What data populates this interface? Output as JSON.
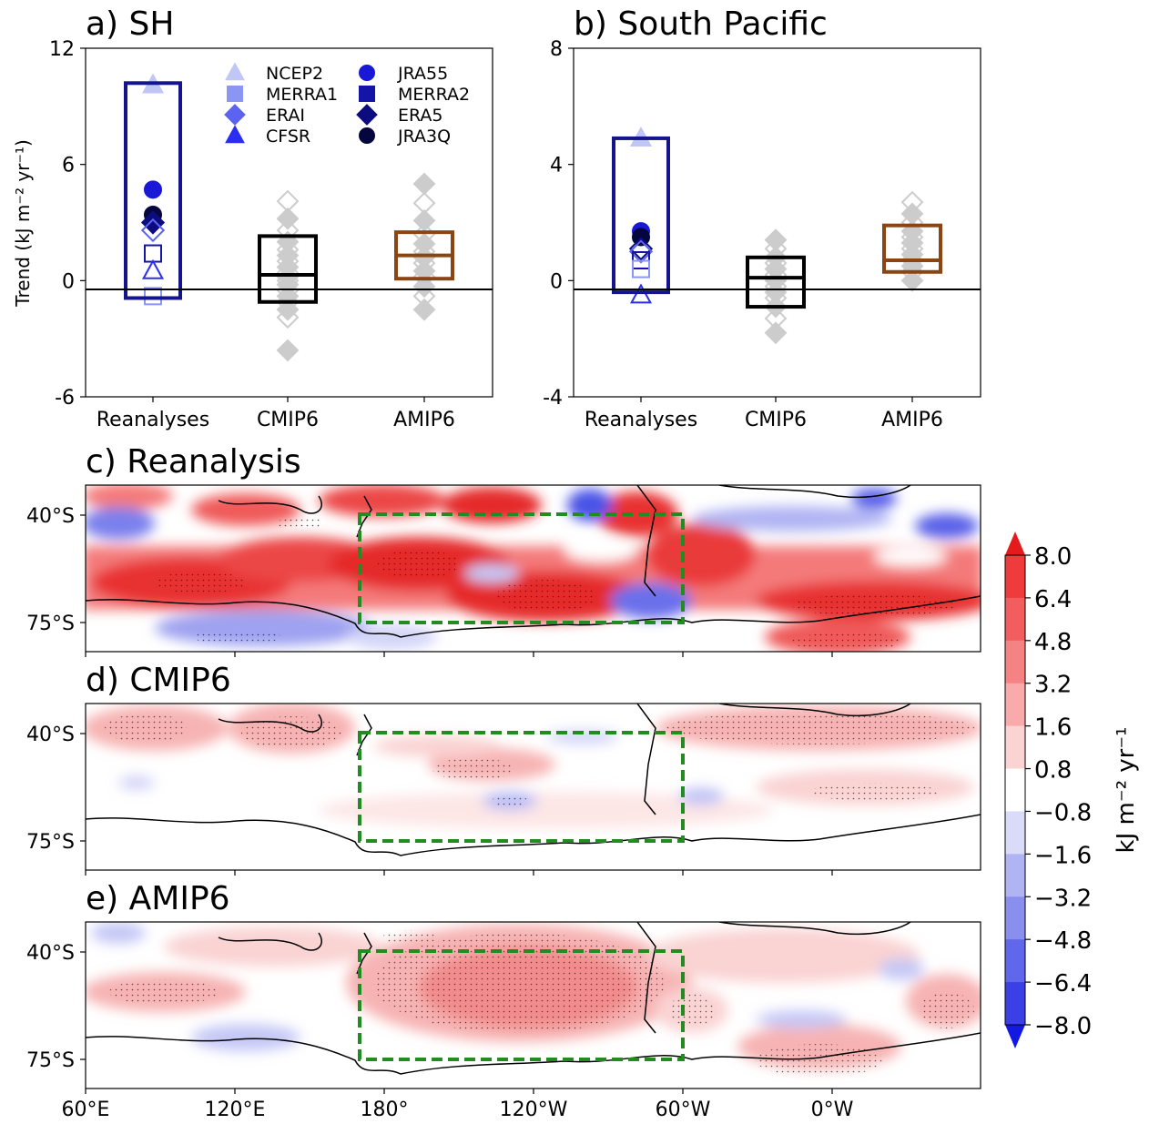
{
  "chart_data": [
    {
      "panel": "a",
      "type": "scatter",
      "title": "a) SH",
      "ylabel": "Trend (kJ m⁻² yr⁻¹)",
      "ylim": [
        -6,
        12
      ],
      "yticks": [
        "-6",
        "0",
        "6",
        "12"
      ],
      "categories": [
        "Reanalyses",
        "CMIP6",
        "AMIP6"
      ],
      "legend": {
        "placement": "top-center",
        "items": [
          {
            "name": "NCEP2",
            "marker": "triangle",
            "color": "#c0c6f6"
          },
          {
            "name": "MERRA1",
            "marker": "square",
            "color": "#8a95f4"
          },
          {
            "name": "ERAI",
            "marker": "diamond",
            "color": "#5b63f0"
          },
          {
            "name": "CFSR",
            "marker": "triangle",
            "color": "#2a2ef0"
          },
          {
            "name": "JRA55",
            "marker": "circle",
            "color": "#1818d6"
          },
          {
            "name": "MERRA2",
            "marker": "square",
            "color": "#1414a8"
          },
          {
            "name": "ERA5",
            "marker": "diamond",
            "color": "#0c0c80"
          },
          {
            "name": "JRA3Q",
            "marker": "circle",
            "color": "#06063e"
          }
        ]
      },
      "reanalyses": [
        {
          "name": "NCEP2",
          "value": 10.1,
          "filled": true
        },
        {
          "name": "JRA55",
          "value": 4.7,
          "filled": true
        },
        {
          "name": "JRA3Q",
          "value": 3.4,
          "filled": true
        },
        {
          "name": "ERA5",
          "value": 3.0,
          "filled": true
        },
        {
          "name": "ERAI",
          "value": 2.6,
          "filled": false
        },
        {
          "name": "MERRA2",
          "value": 1.4,
          "filled": false
        },
        {
          "name": "CFSR",
          "value": 0.5,
          "filled": false
        },
        {
          "name": "MERRA1",
          "value": -0.8,
          "filled": false
        }
      ],
      "boxes": [
        {
          "category": "Reanalyses",
          "low": -0.9,
          "high": 10.2,
          "median": null,
          "color": "#14148c"
        },
        {
          "category": "CMIP6",
          "low": -1.1,
          "high": 2.3,
          "median": 0.3,
          "color": "#000000"
        },
        {
          "category": "AMIP6",
          "low": 0.1,
          "high": 2.5,
          "median": 1.3,
          "color": "#8b4513"
        }
      ],
      "models": {
        "CMIP6": [
          -3.6,
          -1.9,
          -1.5,
          -1.1,
          -0.8,
          -0.5,
          -0.2,
          0.0,
          0.2,
          0.4,
          0.7,
          1.0,
          1.3,
          1.6,
          2.0,
          2.6,
          3.2,
          4.1
        ],
        "AMIP6": [
          -1.5,
          -0.8,
          -0.3,
          0.2,
          0.5,
          0.9,
          1.2,
          1.5,
          1.9,
          2.4,
          3.1,
          4.0,
          5.0
        ]
      }
    },
    {
      "panel": "b",
      "type": "scatter",
      "title": "b) South Pacific",
      "ylim": [
        -4,
        8
      ],
      "yticks": [
        "-4",
        "0",
        "4",
        "8"
      ],
      "categories": [
        "Reanalyses",
        "CMIP6",
        "AMIP6"
      ],
      "reanalyses": [
        {
          "name": "NCEP2",
          "value": 4.9,
          "filled": true
        },
        {
          "name": "JRA55",
          "value": 1.7,
          "filled": true
        },
        {
          "name": "JRA3Q",
          "value": 1.5,
          "filled": true
        },
        {
          "name": "ERA5",
          "value": 1.1,
          "filled": false
        },
        {
          "name": "ERAI",
          "value": 1.0,
          "filled": false
        },
        {
          "name": "MERRA2",
          "value": 0.7,
          "filled": false
        },
        {
          "name": "MERRA1",
          "value": 0.4,
          "filled": false
        },
        {
          "name": "CFSR",
          "value": -0.5,
          "filled": false
        }
      ],
      "boxes": [
        {
          "category": "Reanalyses",
          "low": -0.4,
          "high": 4.9,
          "median": null,
          "color": "#14148c"
        },
        {
          "category": "CMIP6",
          "low": -0.9,
          "high": 0.8,
          "median": 0.1,
          "color": "#000000"
        },
        {
          "category": "AMIP6",
          "low": 0.3,
          "high": 1.9,
          "median": 0.7,
          "color": "#8b4513"
        }
      ],
      "models": {
        "CMIP6": [
          -1.8,
          -1.3,
          -0.9,
          -0.6,
          -0.4,
          -0.2,
          0.0,
          0.2,
          0.4,
          0.6,
          0.8,
          1.1,
          1.4
        ],
        "AMIP6": [
          0.0,
          0.3,
          0.5,
          0.7,
          0.9,
          1.1,
          1.3,
          1.5,
          1.7,
          2.0,
          2.3,
          2.7
        ]
      }
    },
    {
      "panel": "c",
      "type": "heatmap",
      "title": "c) Reanalysis",
      "lat_ticks": [
        "40°S",
        "75°S"
      ]
    },
    {
      "panel": "d",
      "type": "heatmap",
      "title": "d) CMIP6",
      "lat_ticks": [
        "40°S",
        "75°S"
      ]
    },
    {
      "panel": "e",
      "type": "heatmap",
      "title": "e) AMIP6",
      "lat_ticks": [
        "40°S",
        "75°S"
      ],
      "lon_ticks": [
        "60°E",
        "120°E",
        "180°",
        "120°W",
        "60°W",
        "0°W"
      ]
    }
  ],
  "colorbar": {
    "label": "kJ m⁻² yr⁻¹",
    "ticks": [
      "8.0",
      "6.4",
      "4.8",
      "3.2",
      "1.6",
      "0.8",
      "−0.8",
      "−1.6",
      "−3.2",
      "−4.8",
      "−6.4",
      "−8.0"
    ],
    "colors": [
      "#e41a1c",
      "#ef3b3c",
      "#f25d5d",
      "#f58383",
      "#f9abab",
      "#fcd3d3",
      "#ffffff",
      "#d9dbf9",
      "#b0b4f3",
      "#8a8fee",
      "#6167ea",
      "#3a40e6",
      "#1318e2"
    ]
  },
  "colors": {
    "reanalysis_box": "#14148c",
    "cmip6_box": "#000000",
    "amip6_box": "#8b4513",
    "model_marker": "#cccccc",
    "region_box": "#228b22"
  }
}
